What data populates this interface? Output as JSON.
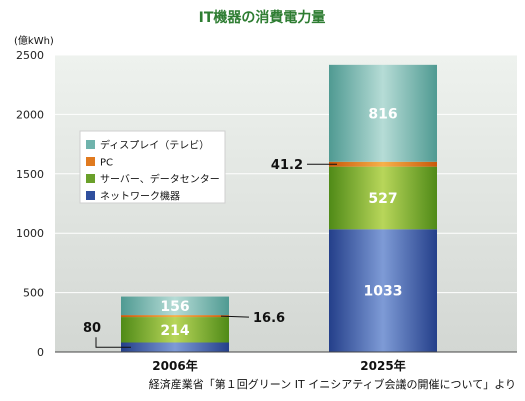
{
  "chart_data": {
    "type": "bar",
    "stacked": true,
    "title": "IT機器の消費電力量",
    "ylabel": "(億kWh)",
    "xlabel": "",
    "ylim": [
      0,
      2500
    ],
    "yticks": [
      0,
      500,
      1000,
      1500,
      2000,
      2500
    ],
    "categories": [
      "2006年",
      "2025年"
    ],
    "series": [
      {
        "name": "ネットワーク機器",
        "values": [
          80,
          1033
        ],
        "color": "#2f4f9e"
      },
      {
        "name": "サーバー、データセンター",
        "values": [
          214,
          527
        ],
        "color": "#6aa02a"
      },
      {
        "name": "PC",
        "values": [
          16.6,
          41.2
        ],
        "color": "#e07a1f"
      },
      {
        "name": "ディスプレイ（テレビ）",
        "values": [
          156,
          816
        ],
        "color": "#6fb3ac"
      }
    ],
    "data_labels": [
      {
        "text": "80"
      },
      {
        "text": "214"
      },
      {
        "text": "16.6"
      },
      {
        "text": "156"
      },
      {
        "text": "1033"
      },
      {
        "text": "527"
      },
      {
        "text": "41.2"
      },
      {
        "text": "816"
      }
    ],
    "legend_order": [
      3,
      2,
      1,
      0
    ],
    "legend_position": "left",
    "grid": true,
    "source": "経済産業省「第１回グリーン IT イニシアティブ会議の開催について」より"
  }
}
